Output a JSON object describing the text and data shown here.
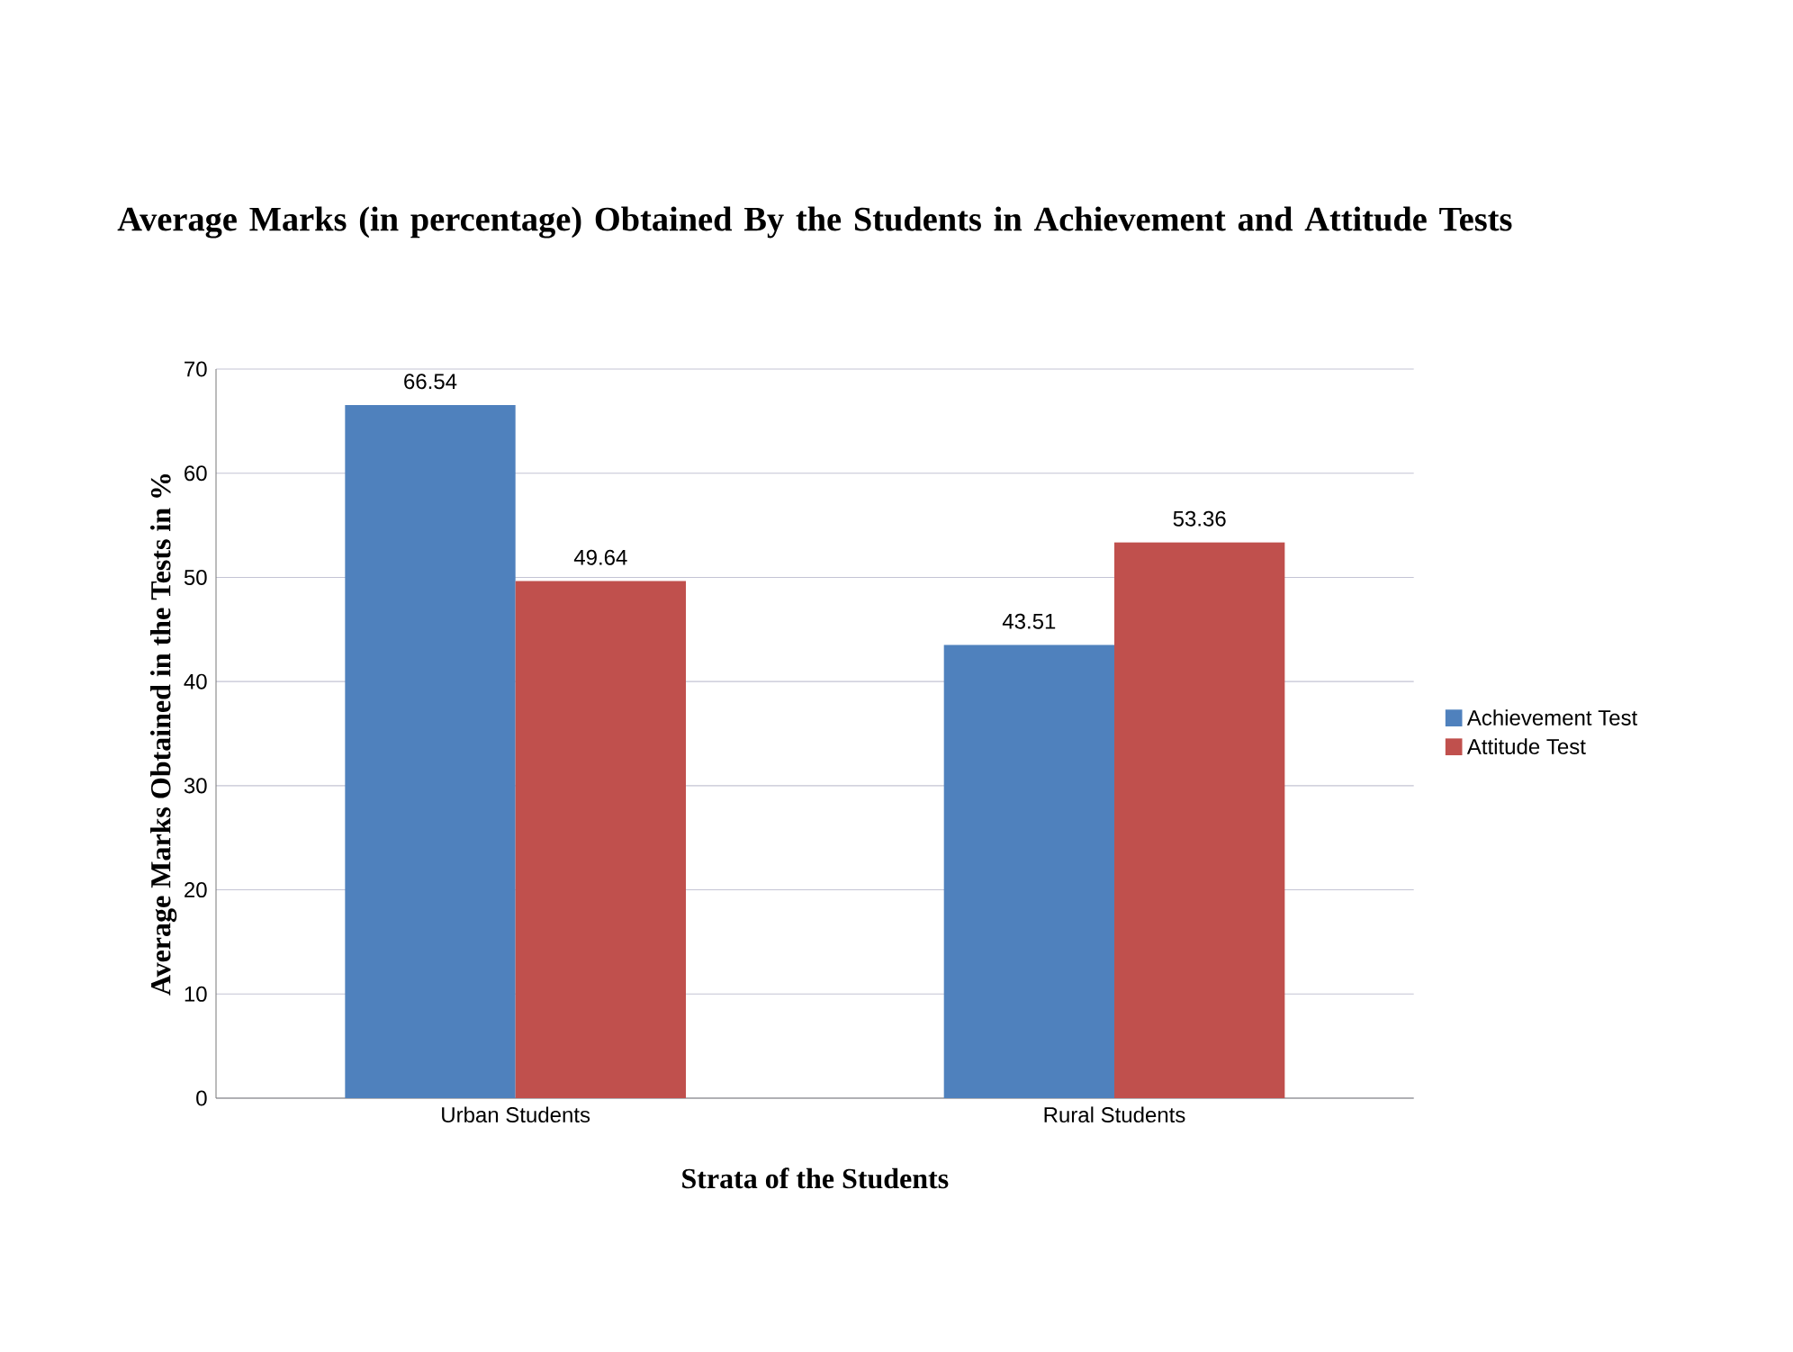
{
  "chart_data": {
    "type": "bar",
    "title": "Average Marks (in percentage) Obtained By the Students in Achievement and Attitude Tests",
    "xlabel": "Strata of the Students",
    "ylabel": "Average Marks Obtained in the Tests in %",
    "categories": [
      "Urban Students",
      "Rural Students"
    ],
    "series": [
      {
        "name": "Achievement Test",
        "color": "#4f81bd",
        "values": [
          66.54,
          43.51
        ]
      },
      {
        "name": "Attitude Test",
        "color": "#c0504d",
        "values": [
          49.64,
          53.36
        ]
      }
    ],
    "ylim": [
      0,
      70
    ],
    "yticks": [
      0,
      10,
      20,
      30,
      40,
      50,
      60,
      70
    ],
    "grid": "y",
    "legend": "right",
    "data_labels": true
  }
}
